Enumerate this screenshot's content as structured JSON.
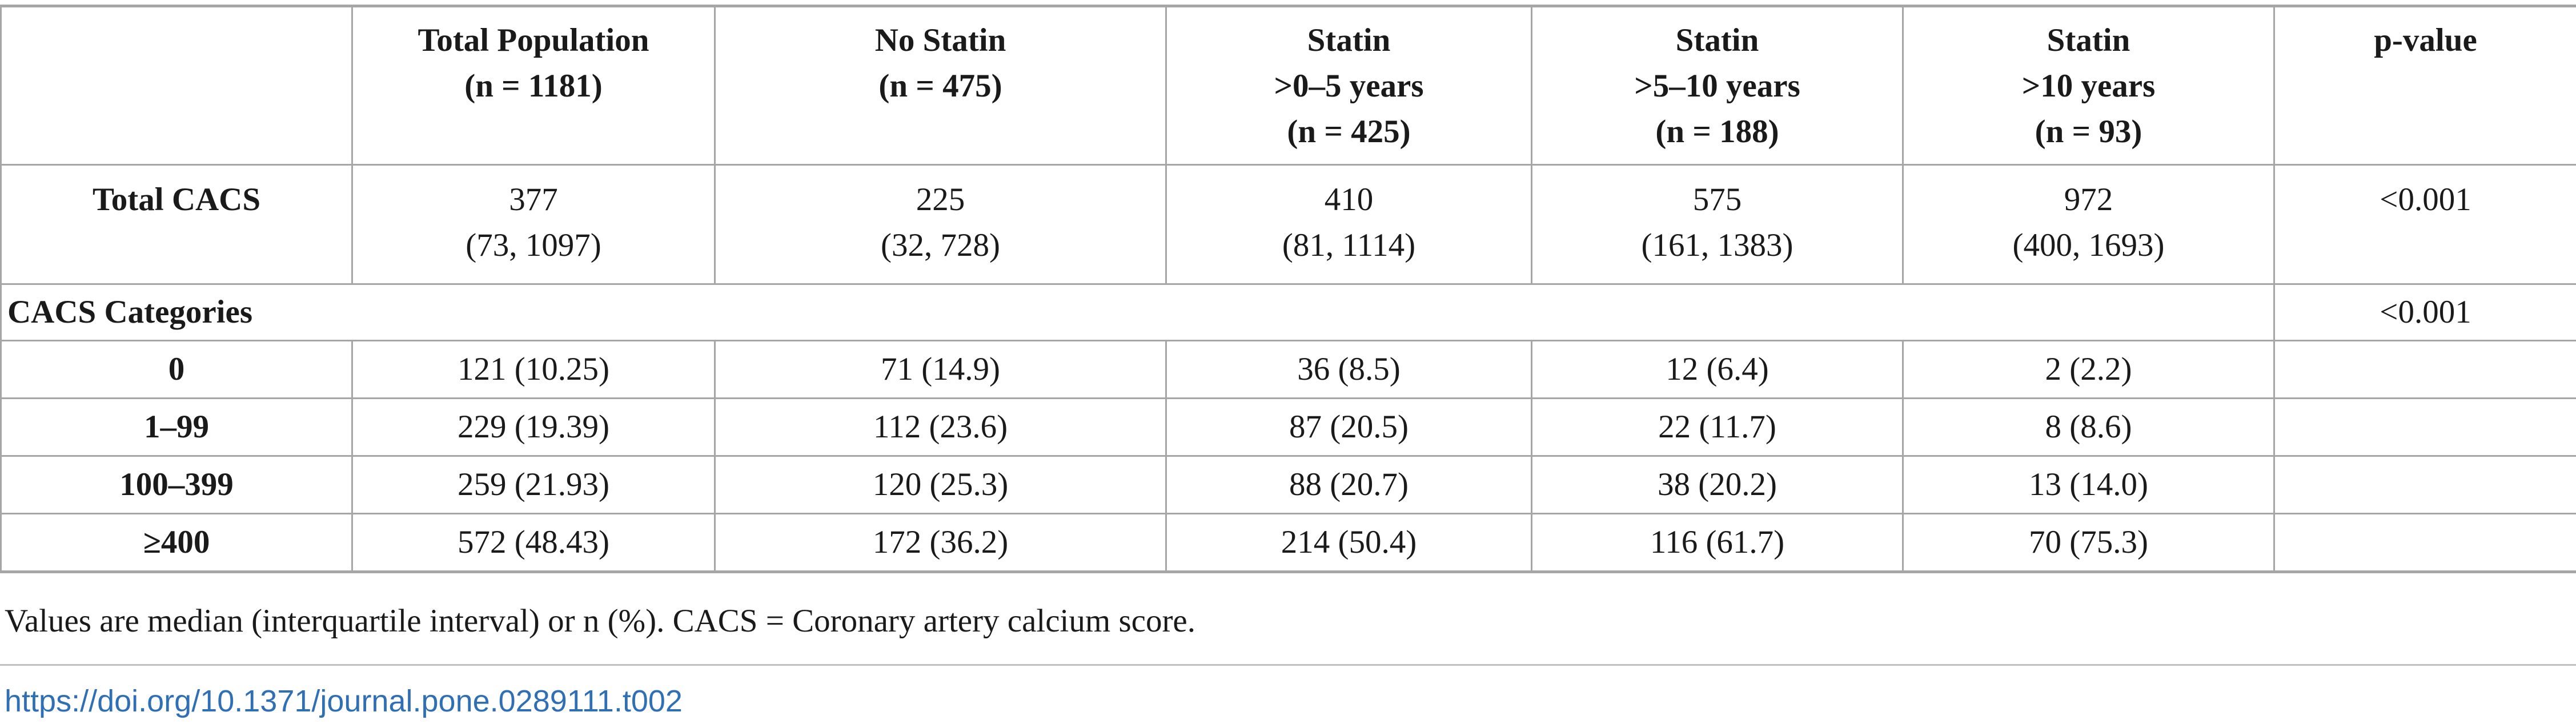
{
  "table": {
    "headers": [
      {
        "lines": [
          ""
        ]
      },
      {
        "lines": [
          "Total Population",
          "(n = 1181)"
        ]
      },
      {
        "lines": [
          "No Statin",
          "(n = 475)"
        ]
      },
      {
        "lines": [
          "Statin",
          ">0–5 years",
          "(n = 425)"
        ]
      },
      {
        "lines": [
          "Statin",
          ">5–10 years",
          "(n = 188)"
        ]
      },
      {
        "lines": [
          "Statin",
          ">10 years",
          "(n = 93)"
        ]
      },
      {
        "lines": [
          "p-value"
        ]
      }
    ],
    "total_cacs": {
      "label": "Total CACS",
      "cells": [
        [
          "377",
          "(73, 1097)"
        ],
        [
          "225",
          "(32, 728)"
        ],
        [
          "410",
          "(81, 1114)"
        ],
        [
          "575",
          "(161, 1383)"
        ],
        [
          "972",
          "(400, 1693)"
        ]
      ],
      "p_value": "<0.001"
    },
    "categories": {
      "label": "CACS Categories",
      "p_value": "<0.001"
    },
    "category_rows": [
      {
        "label": "0",
        "cells": [
          "121 (10.25)",
          "71 (14.9)",
          "36 (8.5)",
          "12 (6.4)",
          "2 (2.2)"
        ],
        "p_value": ""
      },
      {
        "label": "1–99",
        "cells": [
          "229 (19.39)",
          "112 (23.6)",
          "87 (20.5)",
          "22 (11.7)",
          "8 (8.6)"
        ],
        "p_value": ""
      },
      {
        "label": "100–399",
        "cells": [
          "259 (21.93)",
          "120 (25.3)",
          "88 (20.7)",
          "38 (20.2)",
          "13 (14.0)"
        ],
        "p_value": ""
      },
      {
        "label": "≥400",
        "cells": [
          "572 (48.43)",
          "172 (36.2)",
          "214 (50.4)",
          "116 (61.7)",
          "70 (75.3)"
        ],
        "p_value": ""
      }
    ]
  },
  "footnote": "Values are median (interquartile interval) or n (%). CACS = Coronary artery calcium score.",
  "doi": "https://doi.org/10.1371/journal.pone.0289111.t002"
}
